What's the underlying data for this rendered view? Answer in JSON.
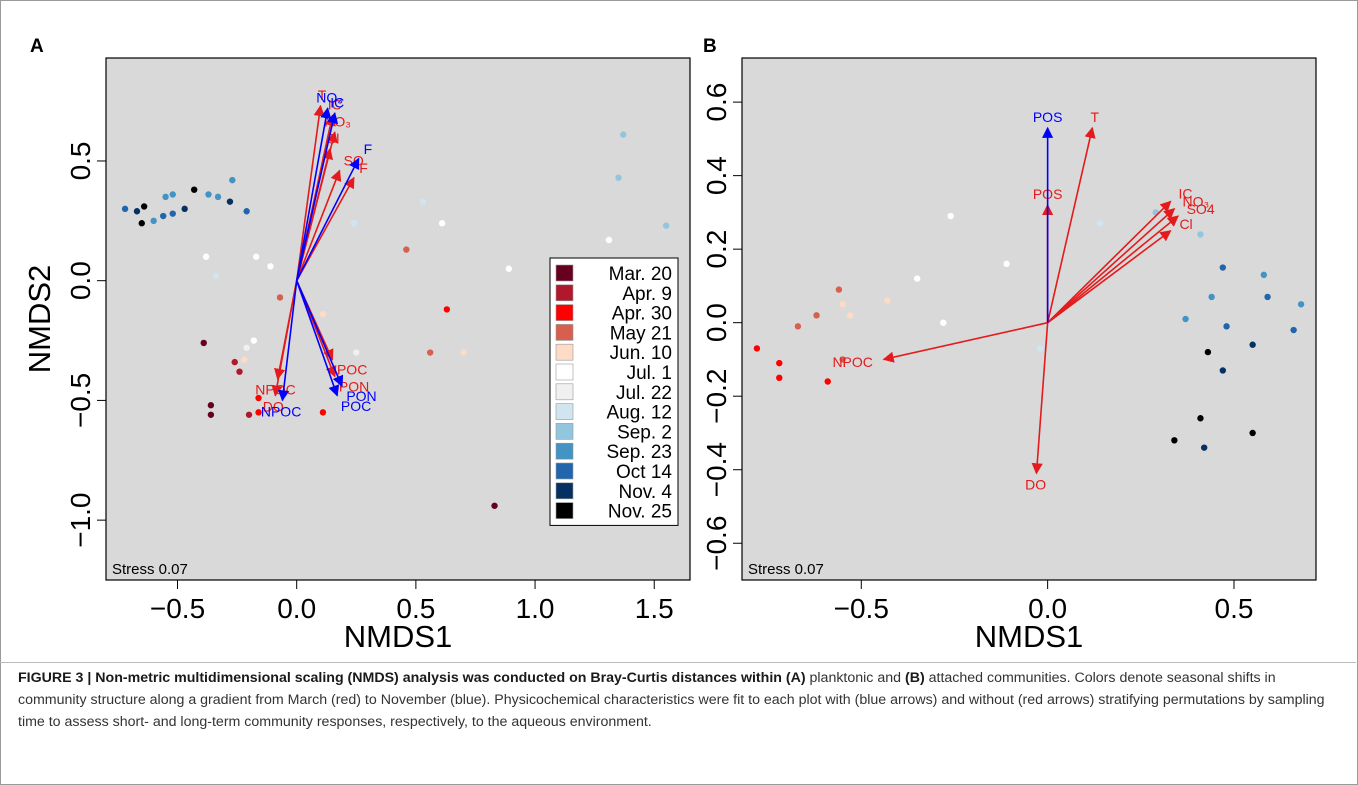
{
  "chart_data": [
    {
      "type": "scatter",
      "panel": "A",
      "xlabel": "NMDS1",
      "ylabel": "NMDS2",
      "xlim": [
        -0.8,
        1.65
      ],
      "ylim": [
        -1.25,
        0.93
      ],
      "xticks": [
        -0.5,
        0.0,
        0.5,
        1.0,
        1.5
      ],
      "xtick_labels": [
        "−0.5",
        "0.0",
        "0.5",
        "1.0",
        "1.5"
      ],
      "yticks": [
        -1.0,
        -0.5,
        0.0,
        0.5
      ],
      "ytick_labels": [
        "−1.0",
        "−0.5",
        "0.0",
        "0.5"
      ],
      "annotation": "Stress 0.07",
      "legend": {
        "placement": "right",
        "entries": [
          {
            "label": "Mar. 20",
            "color": "#67001f"
          },
          {
            "label": "Apr. 9",
            "color": "#b2182b"
          },
          {
            "label": "Apr. 30",
            "color": "#ff0000"
          },
          {
            "label": "May 21",
            "color": "#d6604d"
          },
          {
            "label": "Jun. 10",
            "color": "#fddbc7"
          },
          {
            "label": "Jul. 1",
            "color": "#ffffff"
          },
          {
            "label": "Jul. 22",
            "color": "#f0f0f0"
          },
          {
            "label": "Aug. 12",
            "color": "#d1e5f0"
          },
          {
            "label": "Sep. 2",
            "color": "#92c5de"
          },
          {
            "label": "Sep. 23",
            "color": "#4393c3"
          },
          {
            "label": "Oct 14",
            "color": "#2166ac"
          },
          {
            "label": "Nov. 4",
            "color": "#053061"
          },
          {
            "label": "Nov. 25",
            "color": "#000000"
          }
        ]
      },
      "points": [
        {
          "x": -0.72,
          "y": 0.3,
          "color": "#2166ac"
        },
        {
          "x": -0.67,
          "y": 0.29,
          "color": "#053061"
        },
        {
          "x": -0.64,
          "y": 0.31,
          "color": "#000000"
        },
        {
          "x": -0.65,
          "y": 0.24,
          "color": "#000000"
        },
        {
          "x": -0.6,
          "y": 0.25,
          "color": "#4393c3"
        },
        {
          "x": -0.56,
          "y": 0.27,
          "color": "#2166ac"
        },
        {
          "x": -0.55,
          "y": 0.35,
          "color": "#4393c3"
        },
        {
          "x": -0.52,
          "y": 0.36,
          "color": "#4393c3"
        },
        {
          "x": -0.52,
          "y": 0.28,
          "color": "#2166ac"
        },
        {
          "x": -0.47,
          "y": 0.3,
          "color": "#053061"
        },
        {
          "x": -0.43,
          "y": 0.38,
          "color": "#000000"
        },
        {
          "x": -0.37,
          "y": 0.36,
          "color": "#4393c3"
        },
        {
          "x": -0.33,
          "y": 0.35,
          "color": "#4393c3"
        },
        {
          "x": -0.27,
          "y": 0.42,
          "color": "#4393c3"
        },
        {
          "x": -0.28,
          "y": 0.33,
          "color": "#053061"
        },
        {
          "x": -0.21,
          "y": 0.29,
          "color": "#2166ac"
        },
        {
          "x": -0.38,
          "y": 0.1,
          "color": "#ffffff"
        },
        {
          "x": -0.34,
          "y": 0.02,
          "color": "#d1e5f0"
        },
        {
          "x": -0.17,
          "y": 0.1,
          "color": "#ffffff"
        },
        {
          "x": -0.11,
          "y": 0.06,
          "color": "#ffffff"
        },
        {
          "x": -0.07,
          "y": -0.07,
          "color": "#d6604d"
        },
        {
          "x": -0.39,
          "y": -0.26,
          "color": "#67001f"
        },
        {
          "x": -0.26,
          "y": -0.34,
          "color": "#b2182b"
        },
        {
          "x": -0.24,
          "y": -0.38,
          "color": "#b2182b"
        },
        {
          "x": -0.21,
          "y": -0.28,
          "color": "#f0f0f0"
        },
        {
          "x": -0.18,
          "y": -0.25,
          "color": "#ffffff"
        },
        {
          "x": -0.22,
          "y": -0.33,
          "color": "#fddbc7"
        },
        {
          "x": -0.36,
          "y": -0.52,
          "color": "#67001f"
        },
        {
          "x": -0.36,
          "y": -0.56,
          "color": "#67001f"
        },
        {
          "x": -0.2,
          "y": -0.56,
          "color": "#b2182b"
        },
        {
          "x": -0.16,
          "y": -0.49,
          "color": "#ff0000"
        },
        {
          "x": -0.16,
          "y": -0.55,
          "color": "#ff0000"
        },
        {
          "x": 0.11,
          "y": -0.14,
          "color": "#fddbc7"
        },
        {
          "x": 0.24,
          "y": 0.24,
          "color": "#d1e5f0"
        },
        {
          "x": 0.25,
          "y": -0.3,
          "color": "#f0f0f0"
        },
        {
          "x": 0.46,
          "y": 0.13,
          "color": "#d6604d"
        },
        {
          "x": 0.53,
          "y": 0.33,
          "color": "#d1e5f0"
        },
        {
          "x": 0.56,
          "y": -0.3,
          "color": "#d6604d"
        },
        {
          "x": 0.61,
          "y": 0.24,
          "color": "#ffffff"
        },
        {
          "x": 0.63,
          "y": -0.12,
          "color": "#ff0000"
        },
        {
          "x": 0.7,
          "y": -0.3,
          "color": "#fddbc7"
        },
        {
          "x": 0.89,
          "y": 0.05,
          "color": "#ffffff"
        },
        {
          "x": 0.11,
          "y": -0.55,
          "color": "#ff0000"
        },
        {
          "x": 0.83,
          "y": -0.94,
          "color": "#67001f"
        },
        {
          "x": 1.31,
          "y": 0.17,
          "color": "#ffffff"
        },
        {
          "x": 1.35,
          "y": 0.43,
          "color": "#92c5de"
        },
        {
          "x": 1.37,
          "y": 0.61,
          "color": "#92c5de"
        },
        {
          "x": 1.55,
          "y": 0.23,
          "color": "#92c5de"
        }
      ],
      "vectors": [
        {
          "label": "T",
          "x": 0.1,
          "y": 0.73,
          "color": "#e41a1c",
          "group": "unstratified"
        },
        {
          "label": "IC",
          "x": 0.15,
          "y": 0.69,
          "color": "#e41a1c",
          "group": "unstratified"
        },
        {
          "label": "NO₃",
          "x": 0.16,
          "y": 0.62,
          "color": "#e41a1c",
          "group": "unstratified"
        },
        {
          "label": "Cl",
          "x": 0.14,
          "y": 0.55,
          "color": "#e41a1c",
          "group": "unstratified"
        },
        {
          "label": "SO",
          "x": 0.18,
          "y": 0.46,
          "color": "#e41a1c",
          "group": "unstratified"
        },
        {
          "label": "F",
          "x": 0.24,
          "y": 0.43,
          "color": "#e41a1c",
          "group": "unstratified"
        },
        {
          "label": "POC",
          "x": 0.15,
          "y": -0.33,
          "color": "#e41a1c",
          "group": "unstratified"
        },
        {
          "label": "PON",
          "x": 0.16,
          "y": -0.4,
          "color": "#e41a1c",
          "group": "unstratified"
        },
        {
          "label": "NPOC",
          "x": -0.08,
          "y": -0.41,
          "color": "#e41a1c",
          "group": "unstratified"
        },
        {
          "label": "DO",
          "x": -0.09,
          "y": -0.48,
          "color": "#e41a1c",
          "group": "unstratified"
        },
        {
          "label": "NO₃",
          "x": 0.13,
          "y": 0.72,
          "color": "#0000ff",
          "group": "stratified"
        },
        {
          "label": "IC",
          "x": 0.16,
          "y": 0.7,
          "color": "#0000ff",
          "group": "stratified"
        },
        {
          "label": "F",
          "x": 0.26,
          "y": 0.51,
          "color": "#0000ff",
          "group": "stratified"
        },
        {
          "label": "POC",
          "x": 0.17,
          "y": -0.48,
          "color": "#0000ff",
          "group": "stratified"
        },
        {
          "label": "PON",
          "x": 0.19,
          "y": -0.44,
          "color": "#0000ff",
          "group": "stratified"
        },
        {
          "label": "NPOC",
          "x": -0.06,
          "y": -0.5,
          "color": "#0000ff",
          "group": "stratified"
        }
      ]
    },
    {
      "type": "scatter",
      "panel": "B",
      "xlabel": "NMDS1",
      "ylabel": "",
      "xlim": [
        -0.82,
        0.72
      ],
      "ylim": [
        -0.7,
        0.72
      ],
      "xticks": [
        -0.5,
        0.0,
        0.5
      ],
      "xtick_labels": [
        "−0.5",
        "0.0",
        "0.5"
      ],
      "yticks": [
        -0.6,
        -0.4,
        -0.2,
        0.0,
        0.2,
        0.4,
        0.6
      ],
      "ytick_labels": [
        "−0.6",
        "−0.4",
        "−0.2",
        "0.0",
        "0.2",
        "0.4",
        "0.6"
      ],
      "annotation": "Stress 0.07",
      "points": [
        {
          "x": -0.78,
          "y": -0.07,
          "color": "#ff0000"
        },
        {
          "x": -0.72,
          "y": -0.11,
          "color": "#ff0000"
        },
        {
          "x": -0.72,
          "y": -0.15,
          "color": "#ff0000"
        },
        {
          "x": -0.67,
          "y": -0.01,
          "color": "#d6604d"
        },
        {
          "x": -0.62,
          "y": 0.02,
          "color": "#d6604d"
        },
        {
          "x": -0.59,
          "y": -0.16,
          "color": "#ff0000"
        },
        {
          "x": -0.56,
          "y": 0.09,
          "color": "#d6604d"
        },
        {
          "x": -0.55,
          "y": 0.05,
          "color": "#fddbc7"
        },
        {
          "x": -0.55,
          "y": -0.1,
          "color": "#d6604d"
        },
        {
          "x": -0.53,
          "y": 0.02,
          "color": "#fddbc7"
        },
        {
          "x": -0.43,
          "y": 0.06,
          "color": "#fddbc7"
        },
        {
          "x": -0.43,
          "y": -0.1,
          "color": "#fddbc7"
        },
        {
          "x": -0.35,
          "y": 0.12,
          "color": "#ffffff"
        },
        {
          "x": -0.28,
          "y": 0.0,
          "color": "#ffffff"
        },
        {
          "x": -0.26,
          "y": 0.29,
          "color": "#ffffff"
        },
        {
          "x": -0.11,
          "y": 0.16,
          "color": "#ffffff"
        },
        {
          "x": -0.02,
          "y": -0.07,
          "color": "#d1e5f0"
        },
        {
          "x": 0.14,
          "y": 0.27,
          "color": "#d1e5f0"
        },
        {
          "x": 0.29,
          "y": 0.3,
          "color": "#92c5de"
        },
        {
          "x": 0.37,
          "y": 0.01,
          "color": "#4393c3"
        },
        {
          "x": 0.41,
          "y": 0.24,
          "color": "#92c5de"
        },
        {
          "x": 0.44,
          "y": 0.07,
          "color": "#4393c3"
        },
        {
          "x": 0.47,
          "y": 0.15,
          "color": "#2166ac"
        },
        {
          "x": 0.48,
          "y": -0.01,
          "color": "#2166ac"
        },
        {
          "x": 0.47,
          "y": -0.13,
          "color": "#053061"
        },
        {
          "x": 0.43,
          "y": -0.08,
          "color": "#000000"
        },
        {
          "x": 0.55,
          "y": -0.06,
          "color": "#053061"
        },
        {
          "x": 0.58,
          "y": 0.13,
          "color": "#4393c3"
        },
        {
          "x": 0.59,
          "y": 0.07,
          "color": "#2166ac"
        },
        {
          "x": 0.66,
          "y": -0.02,
          "color": "#2166ac"
        },
        {
          "x": 0.68,
          "y": 0.05,
          "color": "#4393c3"
        },
        {
          "x": 0.41,
          "y": -0.26,
          "color": "#000000"
        },
        {
          "x": 0.34,
          "y": -0.32,
          "color": "#000000"
        },
        {
          "x": 0.42,
          "y": -0.34,
          "color": "#053061"
        },
        {
          "x": 0.55,
          "y": -0.3,
          "color": "#000000"
        }
      ],
      "vectors": [
        {
          "label": "T",
          "x": 0.12,
          "y": 0.53,
          "color": "#e41a1c",
          "group": "unstratified"
        },
        {
          "label": "POS",
          "x": 0.0,
          "y": 0.32,
          "color": "#e41a1c",
          "group": "unstratified"
        },
        {
          "label": "IC",
          "x": 0.33,
          "y": 0.33,
          "color": "#e41a1c",
          "group": "unstratified"
        },
        {
          "label": "NO₃",
          "x": 0.34,
          "y": 0.31,
          "color": "#e41a1c",
          "group": "unstratified"
        },
        {
          "label": "SO4",
          "x": 0.35,
          "y": 0.29,
          "color": "#e41a1c",
          "group": "unstratified"
        },
        {
          "label": "Cl",
          "x": 0.33,
          "y": 0.25,
          "color": "#e41a1c",
          "group": "unstratified"
        },
        {
          "label": "NPOC",
          "x": -0.44,
          "y": -0.1,
          "color": "#e41a1c",
          "group": "unstratified"
        },
        {
          "label": "DO",
          "x": -0.03,
          "y": -0.41,
          "color": "#e41a1c",
          "group": "unstratified"
        },
        {
          "label": "POS",
          "x": 0.0,
          "y": 0.53,
          "color": "#0000ff",
          "group": "stratified"
        }
      ]
    }
  ],
  "caption": {
    "lead": "FIGURE 3 | Non-metric multidimensional scaling (NMDS) analysis was conducted on Bray-Curtis distances within (A)",
    "seg1": " planktonic and ",
    "bold_b": "(B)",
    "seg2": " attached communities. Colors denote seasonal shifts in community structure along a gradient from March (red) to November (blue). Physicochemical characteristics were fit to each plot with (blue arrows) and without (red arrows) stratifying permutations by sampling time to assess short- and long-term community responses, respectively, to the aqueous environment."
  }
}
